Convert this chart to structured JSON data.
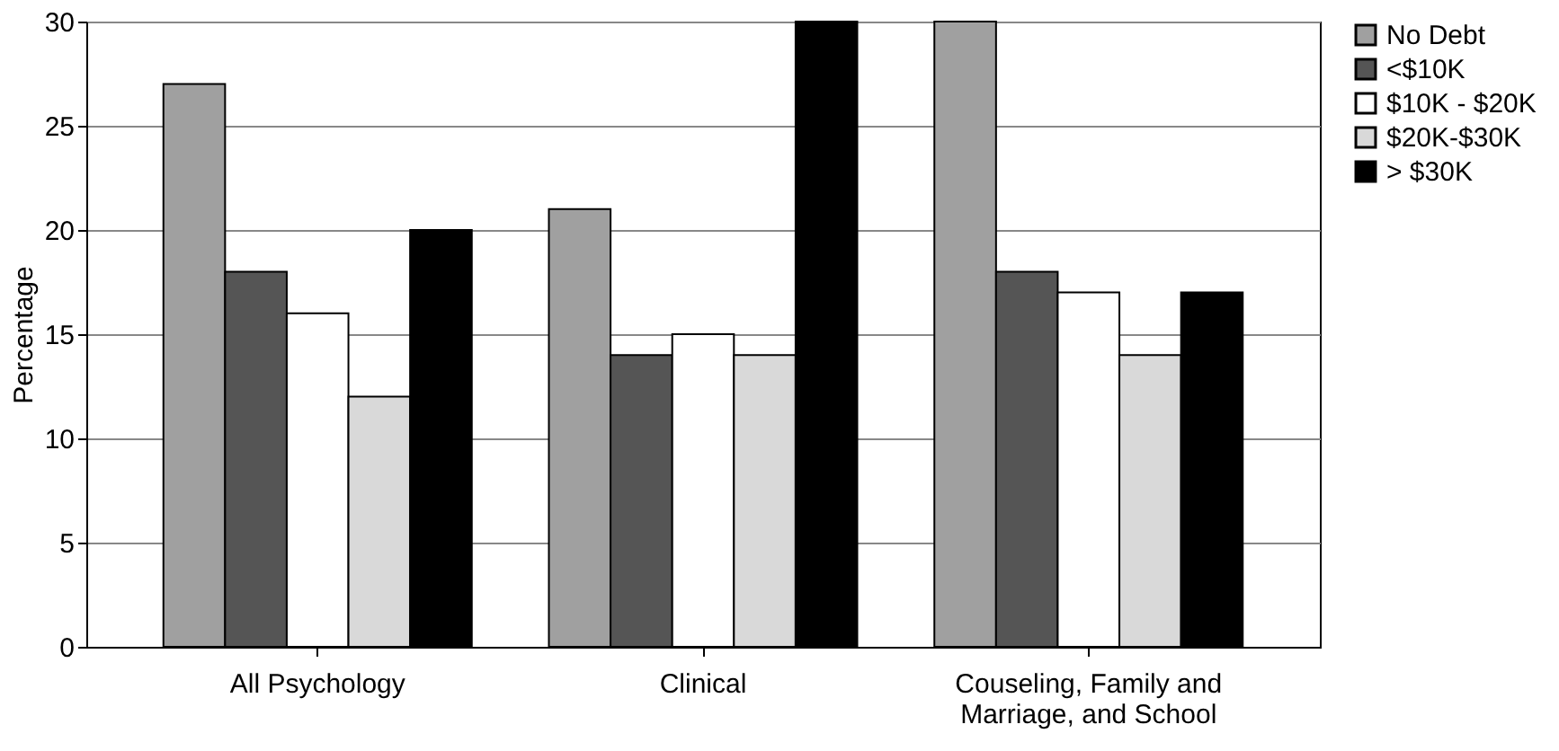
{
  "chart_data": {
    "type": "bar",
    "ylabel": "Percentage",
    "categories": [
      "All Psychology",
      "Clinical",
      "Couseling, Family and Marriage, and School"
    ],
    "series": [
      {
        "name": "No Debt",
        "color": "#a0a0a0",
        "values": [
          27,
          21,
          30
        ]
      },
      {
        "name": "<$10K",
        "color": "#555555",
        "values": [
          18,
          14,
          18
        ]
      },
      {
        "name": "$10K - $20K",
        "color": "#ffffff",
        "values": [
          16,
          15,
          17
        ]
      },
      {
        "name": "$20K-$30K",
        "color": "#d9d9d9",
        "values": [
          12,
          14,
          14
        ]
      },
      {
        "name": "> $30K",
        "color": "#000000",
        "values": [
          20,
          30,
          17
        ]
      }
    ],
    "ylim": [
      0,
      30
    ],
    "yticks": [
      0,
      5,
      10,
      15,
      20,
      25,
      30
    ],
    "grid": "y",
    "legend": "right"
  }
}
